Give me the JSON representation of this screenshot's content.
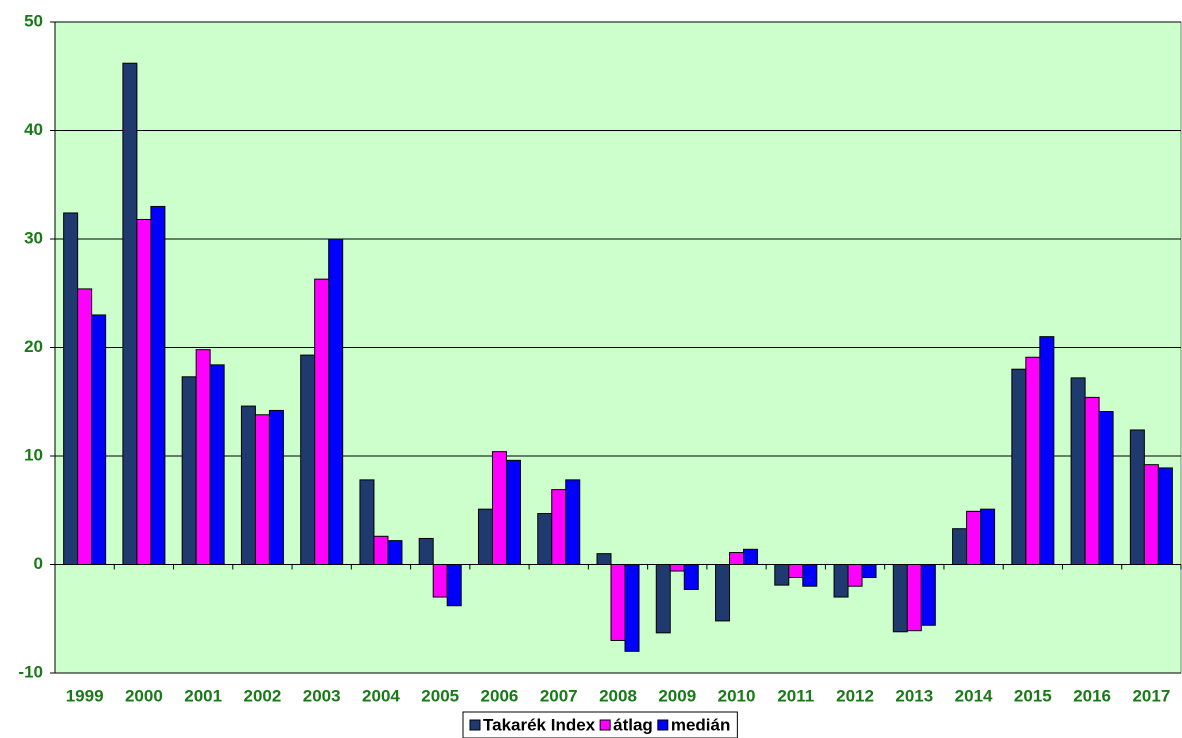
{
  "chart_data": {
    "type": "bar",
    "categories": [
      "1999",
      "2000",
      "2001",
      "2002",
      "2003",
      "2004",
      "2005",
      "2006",
      "2007",
      "2008",
      "2009",
      "2010",
      "2011",
      "2012",
      "2013",
      "2014",
      "2015",
      "2016",
      "2017"
    ],
    "series": [
      {
        "name": "Takarék Index",
        "color": "#1f3a6e",
        "values": [
          32.4,
          46.2,
          17.3,
          14.6,
          19.3,
          7.8,
          2.4,
          5.1,
          4.7,
          1.0,
          -6.3,
          -5.2,
          -1.9,
          -3.0,
          -6.2,
          3.3,
          18.0,
          17.2,
          12.4
        ]
      },
      {
        "name": "átlag",
        "color": "#ff00ff",
        "values": [
          25.4,
          31.8,
          19.8,
          13.8,
          26.3,
          2.6,
          -3.0,
          10.4,
          6.9,
          -7.0,
          -0.6,
          1.1,
          -1.2,
          -2.0,
          -6.1,
          4.9,
          19.1,
          15.4,
          9.2
        ]
      },
      {
        "name": "medián",
        "color": "#0000ff",
        "values": [
          23.0,
          33.0,
          18.4,
          14.2,
          30.0,
          2.2,
          -3.8,
          9.6,
          7.8,
          -8.0,
          -2.3,
          1.4,
          -2.0,
          -1.2,
          -5.6,
          5.1,
          21.0,
          14.1,
          8.9
        ]
      }
    ],
    "ylim": [
      -10,
      50
    ],
    "yticks": [
      -10,
      0,
      10,
      20,
      30,
      40,
      50
    ],
    "grid": true,
    "legend": "bottom"
  }
}
